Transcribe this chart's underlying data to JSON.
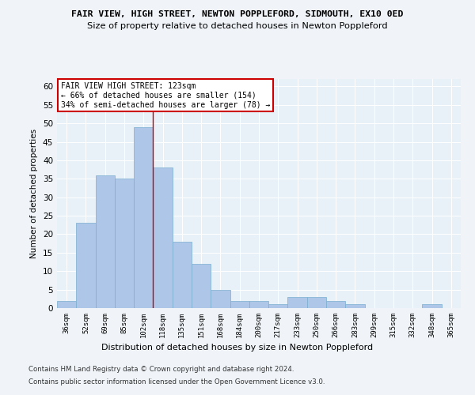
{
  "title": "FAIR VIEW, HIGH STREET, NEWTON POPPLEFORD, SIDMOUTH, EX10 0ED",
  "subtitle": "Size of property relative to detached houses in Newton Poppleford",
  "xlabel": "Distribution of detached houses by size in Newton Poppleford",
  "ylabel": "Number of detached properties",
  "categories": [
    "36sqm",
    "52sqm",
    "69sqm",
    "85sqm",
    "102sqm",
    "118sqm",
    "135sqm",
    "151sqm",
    "168sqm",
    "184sqm",
    "200sqm",
    "217sqm",
    "233sqm",
    "250sqm",
    "266sqm",
    "283sqm",
    "299sqm",
    "315sqm",
    "332sqm",
    "348sqm",
    "365sqm"
  ],
  "values": [
    2,
    23,
    36,
    35,
    49,
    38,
    18,
    12,
    5,
    2,
    2,
    1,
    3,
    3,
    2,
    1,
    0,
    0,
    0,
    1,
    0
  ],
  "bar_color": "#aec6e8",
  "bar_edge_color": "#7aaed0",
  "ylim": [
    0,
    62
  ],
  "yticks": [
    0,
    5,
    10,
    15,
    20,
    25,
    30,
    35,
    40,
    45,
    50,
    55,
    60
  ],
  "vline_x": 4.5,
  "vline_color": "#cc0000",
  "annotation_title": "FAIR VIEW HIGH STREET: 123sqm",
  "annotation_line1": "← 66% of detached houses are smaller (154)",
  "annotation_line2": "34% of semi-detached houses are larger (78) →",
  "annotation_box_color": "#cc0000",
  "bg_color": "#e8f0f8",
  "grid_color": "#ffffff",
  "fig_bg_color": "#f0f4f8",
  "footer1": "Contains HM Land Registry data © Crown copyright and database right 2024.",
  "footer2": "Contains public sector information licensed under the Open Government Licence v3.0."
}
